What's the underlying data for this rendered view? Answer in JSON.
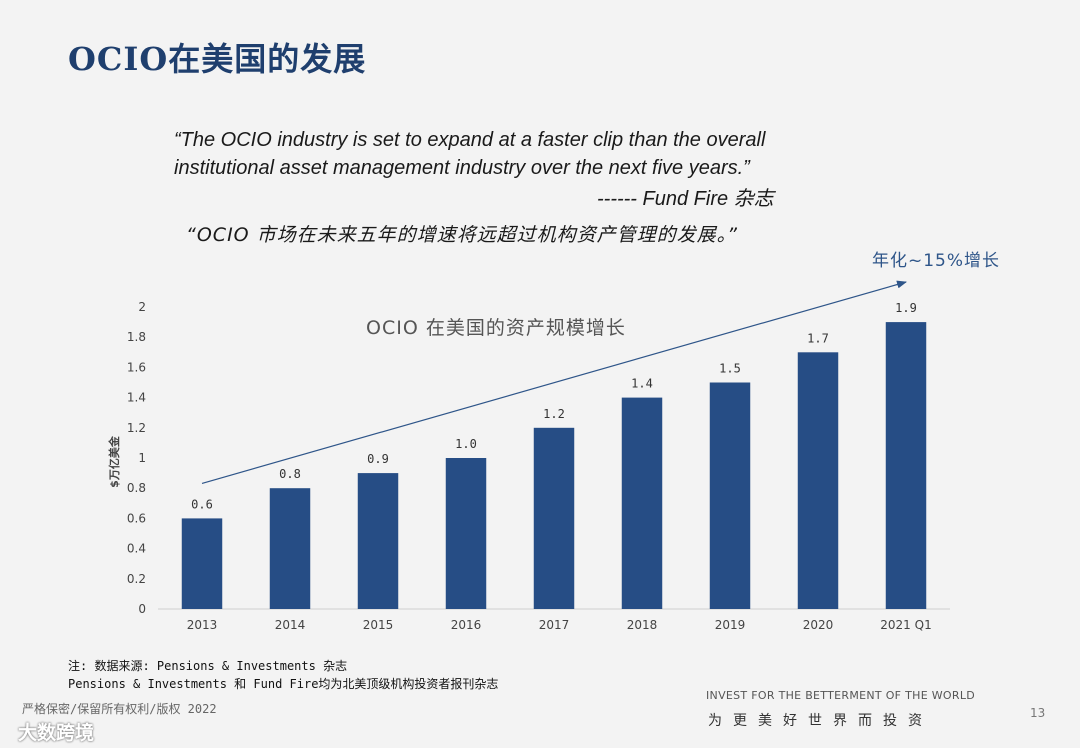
{
  "page": {
    "title": "OCIO在美国的发展",
    "quote_en_line1": "“The OCIO industry is set to expand at a faster clip than the overall",
    "quote_en_line2": "institutional asset management industry over the next five years.”",
    "quote_source": "------ Fund Fire 杂志",
    "quote_cn": "“OCIO 市场在未来五年的增速将远超过机构资产管理的发展。”",
    "growth_label": "年化~15%增长",
    "note_line1": "注: 数据来源: Pensions & Investments 杂志",
    "note_line2": "Pensions & Investments 和 Fund Fire均为北美顶级机构投资者报刊杂志",
    "copyright": "严格保密/保留所有权利/版权 2022",
    "brand": "大数跨境",
    "motto_en": "INVEST FOR THE BETTERMENT OF THE WORLD",
    "motto_cn": "为更美好世界而投资",
    "page_number": "13"
  },
  "chart_data": {
    "type": "bar",
    "title": "OCIO 在美国的资产规模增长",
    "xlabel": "",
    "ylabel": "$万亿美金",
    "categories": [
      "2013",
      "2014",
      "2015",
      "2016",
      "2017",
      "2018",
      "2019",
      "2020",
      "2021 Q1"
    ],
    "values": [
      0.6,
      0.8,
      0.9,
      1.0,
      1.2,
      1.4,
      1.5,
      1.7,
      1.9
    ],
    "value_labels": [
      "0.6",
      "0.8",
      "0.9",
      "1.0",
      "1.2",
      "1.4",
      "1.5",
      "1.7",
      "1.9"
    ],
    "ylim": [
      0,
      2
    ],
    "yticks": [
      "0",
      "0.2",
      "0.4",
      "0.6",
      "0.8",
      "1",
      "1.2",
      "1.4",
      "1.6",
      "1.8",
      "2"
    ],
    "grid": false,
    "bar_color": "#264d85",
    "trend_color": "#2e5589"
  }
}
